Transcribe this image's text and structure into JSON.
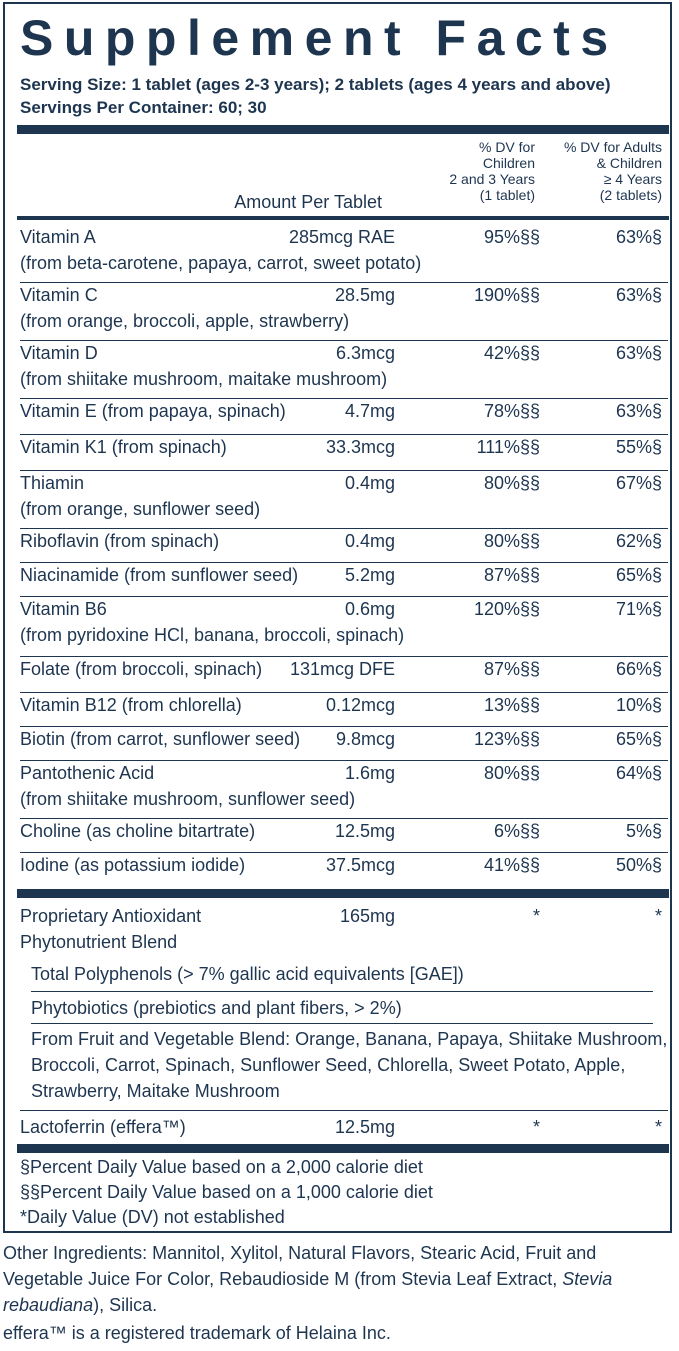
{
  "title": "Supplement Facts",
  "serving_size": "Serving Size: 1 tablet (ages 2-3 years); 2 tablets (ages 4 years and above)",
  "servings_per_container": "Servings Per Container: 60; 30",
  "header": {
    "col_children": [
      "% DV for",
      "Children",
      "2 and 3 Years",
      "(1 tablet)"
    ],
    "col_adults": [
      "% DV for Adults",
      "& Children",
      "≥ 4 Years",
      "(2 tablets)"
    ],
    "amount_per_tablet": "Amount Per Tablet"
  },
  "nutrients": [
    {
      "name": "Vitamin A",
      "source": "(from beta-carotene, papaya, carrot, sweet potato)",
      "amount": "285mcg RAE",
      "dv_children": "95%§§",
      "dv_adults": "63%§"
    },
    {
      "name": "Vitamin C",
      "source": "(from orange, broccoli, apple, strawberry)",
      "amount": "28.5mg",
      "dv_children": "190%§§",
      "dv_adults": "63%§"
    },
    {
      "name": "Vitamin D",
      "source": "(from shiitake mushroom, maitake mushroom)",
      "amount": "6.3mcg",
      "dv_children": "42%§§",
      "dv_adults": "63%§"
    },
    {
      "name": "Vitamin E (from papaya, spinach)",
      "source": "",
      "amount": "4.7mg",
      "dv_children": "78%§§",
      "dv_adults": "63%§"
    },
    {
      "name": "Vitamin K1 (from spinach)",
      "source": "",
      "amount": "33.3mcg",
      "dv_children": "111%§§",
      "dv_adults": "55%§"
    },
    {
      "name": "Thiamin",
      "source": "(from orange, sunflower seed)",
      "amount": "0.4mg",
      "dv_children": "80%§§",
      "dv_adults": "67%§"
    },
    {
      "name": "Riboflavin (from spinach)",
      "source": "",
      "amount": "0.4mg",
      "dv_children": "80%§§",
      "dv_adults": "62%§"
    },
    {
      "name": "Niacinamide (from sunflower seed)",
      "source": "",
      "amount": "5.2mg",
      "dv_children": "87%§§",
      "dv_adults": "65%§"
    },
    {
      "name": "Vitamin B6",
      "source": "(from pyridoxine HCl, banana, broccoli, spinach)",
      "amount": "0.6mg",
      "dv_children": "120%§§",
      "dv_adults": "71%§"
    },
    {
      "name": "Folate (from broccoli, spinach)",
      "source": "",
      "amount": "131mcg DFE",
      "dv_children": "87%§§",
      "dv_adults": "66%§"
    },
    {
      "name": "Vitamin B12 (from chlorella)",
      "source": "",
      "amount": "0.12mcg",
      "dv_children": "13%§§",
      "dv_adults": "10%§"
    },
    {
      "name": "Biotin (from carrot, sunflower seed)",
      "source": "",
      "amount": "9.8mcg",
      "dv_children": "123%§§",
      "dv_adults": "65%§"
    },
    {
      "name": "Pantothenic Acid",
      "source": "(from shiitake mushroom, sunflower seed)",
      "amount": "1.6mg",
      "dv_children": "80%§§",
      "dv_adults": "64%§"
    },
    {
      "name": "Choline (as choline bitartrate)",
      "source": "",
      "amount": "12.5mg",
      "dv_children": "6%§§",
      "dv_adults": "5%§"
    },
    {
      "name": "Iodine (as potassium iodide)",
      "source": "",
      "amount": "37.5mcg",
      "dv_children": "41%§§",
      "dv_adults": "50%§"
    }
  ],
  "blend": {
    "name_line1": "Proprietary Antioxidant",
    "name_line2": "Phytonutrient Blend",
    "amount": "165mg",
    "dv_children": "*",
    "dv_adults": "*",
    "sub_items": [
      {
        "lines": [
          "Total Polyphenols (> 7% gallic acid equivalents [GAE])"
        ]
      },
      {
        "lines": [
          "Phytobiotics (prebiotics and plant fibers, > 2%)"
        ]
      },
      {
        "lines": [
          "From Fruit and Vegetable Blend: Orange, Banana, Papaya, Shiitake Mushroom,",
          "Broccoli, Carrot, Spinach, Sunflower Seed, Chlorella, Sweet Potato, Apple,",
          "Strawberry, Maitake Mushroom"
        ]
      }
    ]
  },
  "lactoferrin": {
    "name": "Lactoferrin (effera™)",
    "amount": "12.5mg",
    "dv_children": "*",
    "dv_adults": "*"
  },
  "footnotes": [
    "§Percent Daily Value based on a 2,000 calorie diet",
    "§§Percent Daily Value based on a 1,000 calorie diet",
    "*Daily Value (DV) not established"
  ],
  "other_ingredients": {
    "line1": "Other Ingredients: Mannitol, Xylitol, Natural Flavors, Stearic Acid, Fruit and",
    "line2_pre": "Vegetable Juice For Color, Rebaudioside M (from Stevia Leaf Extract, ",
    "line2_italic": "Stevia",
    "line3_italic": "rebaudiana",
    "line3_post": "), Silica.",
    "trademark": "effera™ is a registered trademark of Helaina Inc."
  },
  "colors": {
    "ink": "#1e3550",
    "background": "#ffffff"
  }
}
